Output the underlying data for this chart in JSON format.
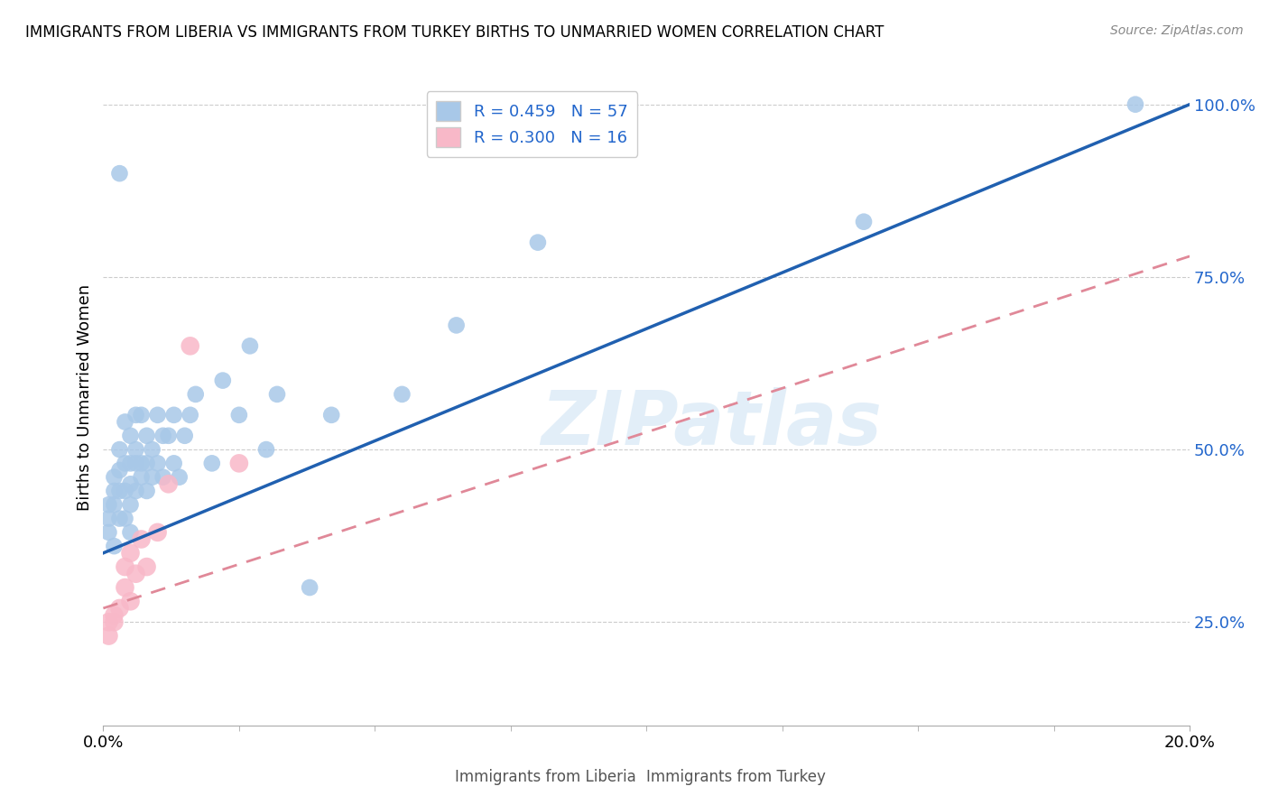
{
  "title": "IMMIGRANTS FROM LIBERIA VS IMMIGRANTS FROM TURKEY BIRTHS TO UNMARRIED WOMEN CORRELATION CHART",
  "source": "Source: ZipAtlas.com",
  "ylabel": "Births to Unmarried Women",
  "watermark": "ZIPatlas",
  "liberia_R": 0.459,
  "liberia_N": 57,
  "turkey_R": 0.3,
  "turkey_N": 16,
  "liberia_color": "#a8c8e8",
  "liberia_line_color": "#2060b0",
  "turkey_color": "#f8b8c8",
  "turkey_line_color": "#e08898",
  "background": "#ffffff",
  "grid_color": "#cccccc",
  "xlim": [
    0.0,
    0.2
  ],
  "ylim": [
    0.1,
    1.05
  ],
  "liberia_scatter_x": [
    0.001,
    0.001,
    0.001,
    0.002,
    0.002,
    0.002,
    0.002,
    0.003,
    0.003,
    0.003,
    0.003,
    0.003,
    0.004,
    0.004,
    0.004,
    0.004,
    0.005,
    0.005,
    0.005,
    0.005,
    0.005,
    0.006,
    0.006,
    0.006,
    0.006,
    0.007,
    0.007,
    0.007,
    0.008,
    0.008,
    0.008,
    0.009,
    0.009,
    0.01,
    0.01,
    0.011,
    0.011,
    0.012,
    0.013,
    0.013,
    0.014,
    0.015,
    0.016,
    0.017,
    0.02,
    0.022,
    0.025,
    0.027,
    0.03,
    0.032,
    0.038,
    0.042,
    0.055,
    0.065,
    0.08,
    0.14,
    0.19
  ],
  "liberia_scatter_y": [
    0.38,
    0.4,
    0.42,
    0.36,
    0.42,
    0.44,
    0.46,
    0.4,
    0.44,
    0.47,
    0.5,
    0.9,
    0.4,
    0.44,
    0.48,
    0.54,
    0.38,
    0.42,
    0.45,
    0.48,
    0.52,
    0.44,
    0.48,
    0.5,
    0.55,
    0.46,
    0.48,
    0.55,
    0.44,
    0.48,
    0.52,
    0.46,
    0.5,
    0.48,
    0.55,
    0.46,
    0.52,
    0.52,
    0.48,
    0.55,
    0.46,
    0.52,
    0.55,
    0.58,
    0.48,
    0.6,
    0.55,
    0.65,
    0.5,
    0.58,
    0.3,
    0.55,
    0.58,
    0.68,
    0.8,
    0.83,
    1.0
  ],
  "turkey_scatter_x": [
    0.001,
    0.001,
    0.002,
    0.002,
    0.003,
    0.004,
    0.004,
    0.005,
    0.005,
    0.006,
    0.007,
    0.008,
    0.01,
    0.012,
    0.016,
    0.025
  ],
  "turkey_scatter_y": [
    0.23,
    0.25,
    0.26,
    0.25,
    0.27,
    0.3,
    0.33,
    0.28,
    0.35,
    0.32,
    0.37,
    0.33,
    0.38,
    0.45,
    0.65,
    0.48
  ],
  "liberia_line_x": [
    0.0,
    0.2
  ],
  "liberia_line_y": [
    0.35,
    1.0
  ],
  "turkey_line_x": [
    0.0,
    0.2
  ],
  "turkey_line_y": [
    0.27,
    0.78
  ],
  "legend_R_label_1": "R = 0.459   N = 57",
  "legend_R_label_2": "R = 0.300   N = 16",
  "legend_color_text": "#2266cc",
  "ytick_vals": [
    0.25,
    0.5,
    0.75,
    1.0
  ],
  "ytick_labels": [
    "25.0%",
    "50.0%",
    "75.0%",
    "100.0%"
  ],
  "xtick_vals": [
    0.0,
    0.2
  ],
  "xtick_labels": [
    "0.0%",
    "20.0%"
  ],
  "bottom_label_liberia": "Immigrants from Liberia",
  "bottom_label_turkey": "Immigrants from Turkey"
}
